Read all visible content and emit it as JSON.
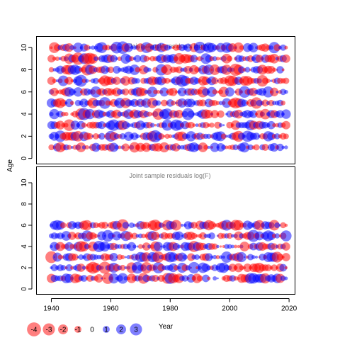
{
  "chart_data": [
    {
      "type": "scatter",
      "subtype": "bubble",
      "title": "Joint sample residuals log(N)",
      "ylabel": "Age",
      "xlim": [
        1935,
        2022
      ],
      "ylim": [
        -0.5,
        11
      ],
      "x_ticks": [
        1940,
        1960,
        1980,
        2000,
        2020
      ],
      "y_ticks": [
        0,
        2,
        4,
        6,
        8,
        10
      ],
      "year_range": [
        1940,
        2019
      ],
      "age_range": [
        1,
        10
      ],
      "x_tick_labels_shown": false,
      "seed": 11
    },
    {
      "type": "scatter",
      "subtype": "bubble",
      "title": "Joint sample residuals log(F)",
      "xlabel": "Year",
      "xlim": [
        1935,
        2022
      ],
      "ylim": [
        -0.5,
        11.5
      ],
      "x_ticks": [
        1940,
        1960,
        1980,
        2000,
        2020
      ],
      "y_ticks": [
        0,
        2,
        4,
        6,
        8,
        10
      ],
      "year_range": [
        1940,
        2019
      ],
      "age_range": [
        1,
        6
      ],
      "x_tick_labels_shown": true,
      "seed": 29
    }
  ],
  "colors": {
    "negative": "#ff0000",
    "positive": "#0000ff"
  },
  "shared_labels": {
    "ylabel": "Age",
    "xlabel": "Year"
  },
  "legend": {
    "items": [
      {
        "label": "-4",
        "value": -4
      },
      {
        "label": "-3",
        "value": -3
      },
      {
        "label": "-2",
        "value": -2
      },
      {
        "label": "-1",
        "value": -1
      },
      {
        "label": "0",
        "value": 0
      },
      {
        "label": "1",
        "value": 1
      },
      {
        "label": "2",
        "value": 2
      },
      {
        "label": "3",
        "value": 3
      }
    ]
  }
}
